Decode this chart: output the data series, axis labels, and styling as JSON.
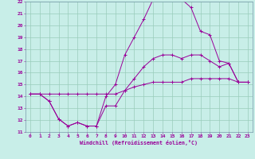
{
  "title": "Windchill (Refroidissement éolien,°C)",
  "bg_color": "#c8eee8",
  "line_color": "#990099",
  "grid_color": "#99ccbb",
  "spine_color": "#7799aa",
  "xlim": [
    -0.5,
    23.5
  ],
  "ylim": [
    11,
    22
  ],
  "xticks": [
    0,
    1,
    2,
    3,
    4,
    5,
    6,
    7,
    8,
    9,
    10,
    11,
    12,
    13,
    14,
    15,
    16,
    17,
    18,
    19,
    20,
    21,
    22,
    23
  ],
  "yticks": [
    11,
    12,
    13,
    14,
    15,
    16,
    17,
    18,
    19,
    20,
    21,
    22
  ],
  "series": [
    [
      14.2,
      14.2,
      13.6,
      12.1,
      11.5,
      11.8,
      11.5,
      11.5,
      14.0,
      15.0,
      17.5,
      19.0,
      20.5,
      22.2,
      22.2,
      22.2,
      22.2,
      21.5,
      19.5,
      19.2,
      17.0,
      16.8,
      15.2,
      15.2
    ],
    [
      14.2,
      14.2,
      13.6,
      12.1,
      11.5,
      11.8,
      11.5,
      11.5,
      13.2,
      13.2,
      14.5,
      15.5,
      16.5,
      17.2,
      17.5,
      17.5,
      17.2,
      17.5,
      17.5,
      17.0,
      16.5,
      16.8,
      15.2,
      15.2
    ],
    [
      14.2,
      14.2,
      14.2,
      14.2,
      14.2,
      14.2,
      14.2,
      14.2,
      14.2,
      14.2,
      14.5,
      14.8,
      15.0,
      15.2,
      15.2,
      15.2,
      15.2,
      15.5,
      15.5,
      15.5,
      15.5,
      15.5,
      15.2,
      15.2
    ]
  ]
}
